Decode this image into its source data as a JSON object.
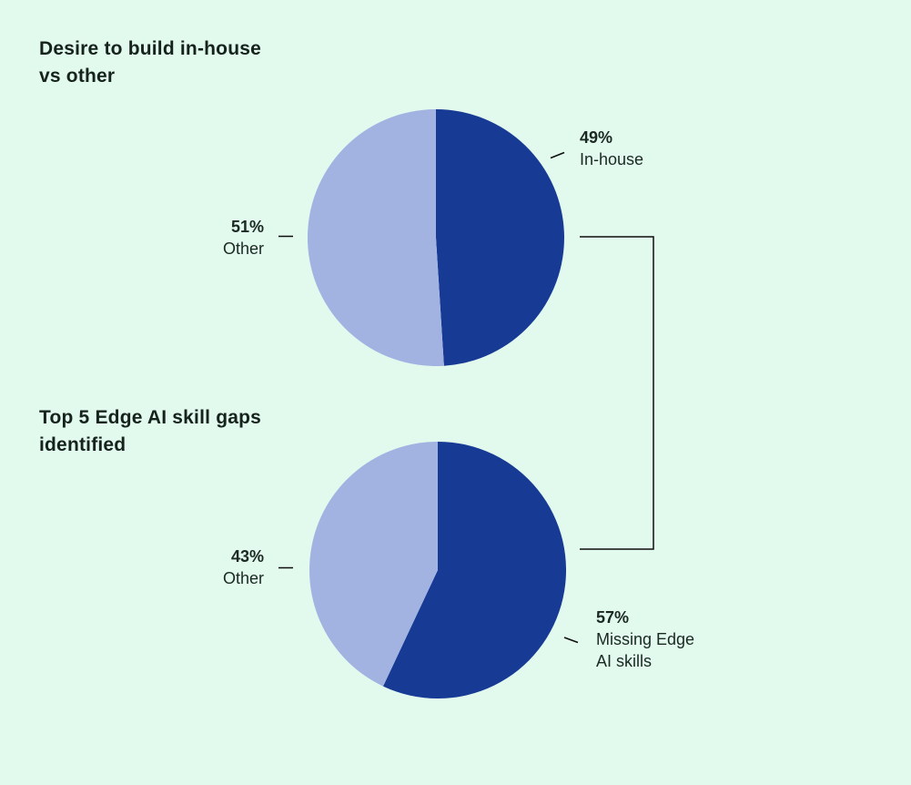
{
  "page": {
    "background_color": "#E2F9EE",
    "text_color": "#15231C",
    "connector_color": "#0E0E0E"
  },
  "chart_data": [
    {
      "type": "pie",
      "title": "Desire to build in-house\nvs other",
      "start_angle": "top",
      "direction": "clockwise",
      "slices": [
        {
          "label": "In-house",
          "value": 49,
          "pct_text": "49%",
          "callout": "In-house",
          "color": "#173A94"
        },
        {
          "label": "Other",
          "value": 51,
          "pct_text": "51%",
          "callout": "Other",
          "color": "#A2B3E2"
        }
      ]
    },
    {
      "type": "pie",
      "title": "Top 5 Edge AI skill gaps\nidentified",
      "start_angle": "top",
      "direction": "clockwise",
      "slices": [
        {
          "label": "Missing Edge AI skills",
          "value": 57,
          "pct_text": "57%",
          "callout": "Missing Edge\nAI skills",
          "color": "#173A94"
        },
        {
          "label": "Other",
          "value": 43,
          "pct_text": "43%",
          "callout": "Other",
          "color": "#A2B3E2"
        }
      ]
    }
  ]
}
